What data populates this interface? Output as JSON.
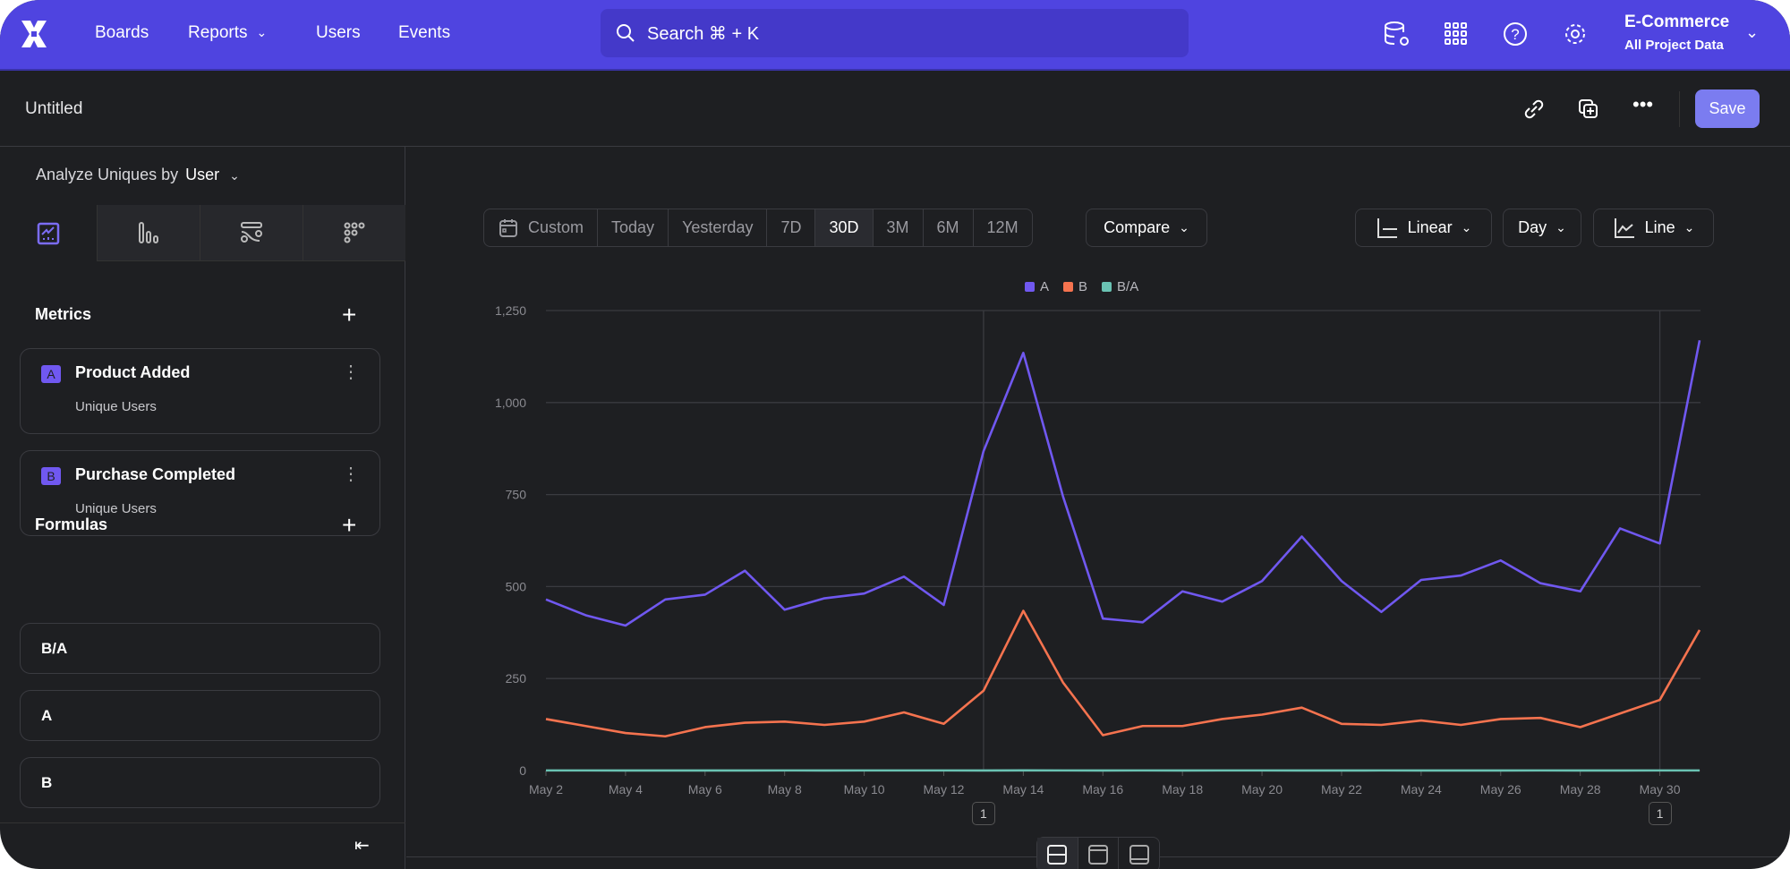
{
  "nav": {
    "items": [
      {
        "label": "Boards"
      },
      {
        "label": "Reports"
      },
      {
        "label": "Users"
      },
      {
        "label": "Events"
      }
    ],
    "search_placeholder": "Search  ⌘ + K",
    "project_name": "E-Commerce",
    "project_scope": "All Project Data",
    "icons": [
      "logo-icon",
      "data-settings-icon",
      "apps-grid-icon",
      "help-icon",
      "gear-icon"
    ]
  },
  "subbar": {
    "title": "Untitled",
    "save_label": "Save",
    "icons": [
      "link-icon",
      "duplicate-icon",
      "more-icon"
    ]
  },
  "sidebar": {
    "analyze_label": "Analyze Uniques by",
    "analyze_value": "User",
    "tabs": [
      "insights-icon",
      "bar-chart-icon",
      "flows-icon",
      "retention-icon"
    ],
    "metrics_heading": "Metrics",
    "metrics": [
      {
        "badge": "A",
        "title": "Product Added",
        "subtitle": "Unique Users"
      },
      {
        "badge": "B",
        "title": "Purchase Completed",
        "subtitle": "Unique Users"
      }
    ],
    "formulas_heading": "Formulas",
    "formulas": [
      {
        "label": "B/A"
      },
      {
        "label": "A"
      },
      {
        "label": "B"
      }
    ]
  },
  "toolbar": {
    "date_ranges": [
      "Custom",
      "Today",
      "Yesterday",
      "7D",
      "30D",
      "3M",
      "6M",
      "12M"
    ],
    "active_range": "30D",
    "compare_label": "Compare",
    "scale_label": "Linear",
    "interval_label": "Day",
    "chart_type_label": "Line"
  },
  "colors": {
    "accent": "#4f44e0",
    "A": "#7058f0",
    "B": "#f5734f",
    "BA": "#6ac2b3"
  },
  "chart_data": {
    "type": "line",
    "x": [
      "May 2",
      "May 3",
      "May 4",
      "May 5",
      "May 6",
      "May 7",
      "May 8",
      "May 9",
      "May 10",
      "May 11",
      "May 12",
      "May 13",
      "May 14",
      "May 15",
      "May 16",
      "May 17",
      "May 18",
      "May 19",
      "May 20",
      "May 21",
      "May 22",
      "May 23",
      "May 24",
      "May 25",
      "May 26",
      "May 27",
      "May 28",
      "May 29",
      "May 30",
      "May 31"
    ],
    "x_tick_labels": [
      "May 2",
      "May 4",
      "May 6",
      "May 8",
      "May 10",
      "May 12",
      "May 14",
      "May 16",
      "May 18",
      "May 20",
      "May 22",
      "May 24",
      "May 26",
      "May 28",
      "May 30"
    ],
    "y_tick_labels": [
      "0",
      "250",
      "500",
      "750",
      "1,000",
      "1,250"
    ],
    "ylim": [
      0,
      1250
    ],
    "grid": true,
    "legend": "top-center",
    "series": [
      {
        "name": "A",
        "values": [
          465,
          422,
          394,
          465,
          478,
          543,
          437,
          468,
          481,
          527,
          450,
          868,
          1135,
          744,
          413,
          403,
          487,
          459,
          515,
          636,
          515,
          431,
          518,
          530,
          571,
          509,
          487,
          658,
          617,
          1169
        ]
      },
      {
        "name": "B",
        "values": [
          140,
          121,
          102,
          93,
          118,
          130,
          133,
          124,
          133,
          158,
          127,
          217,
          434,
          239,
          96,
          121,
          121,
          140,
          152,
          171,
          127,
          124,
          136,
          124,
          140,
          143,
          118,
          155,
          192,
          382
        ]
      },
      {
        "name": "B/A",
        "values": [
          0.3,
          0.29,
          0.26,
          0.2,
          0.25,
          0.24,
          0.3,
          0.26,
          0.28,
          0.3,
          0.28,
          0.25,
          0.38,
          0.32,
          0.23,
          0.3,
          0.25,
          0.3,
          0.3,
          0.27,
          0.25,
          0.29,
          0.26,
          0.23,
          0.25,
          0.28,
          0.24,
          0.24,
          0.31,
          0.33
        ]
      }
    ],
    "annotations": [
      {
        "x": "May 13",
        "label": "1"
      },
      {
        "x": "May 30",
        "label": "1"
      }
    ]
  }
}
